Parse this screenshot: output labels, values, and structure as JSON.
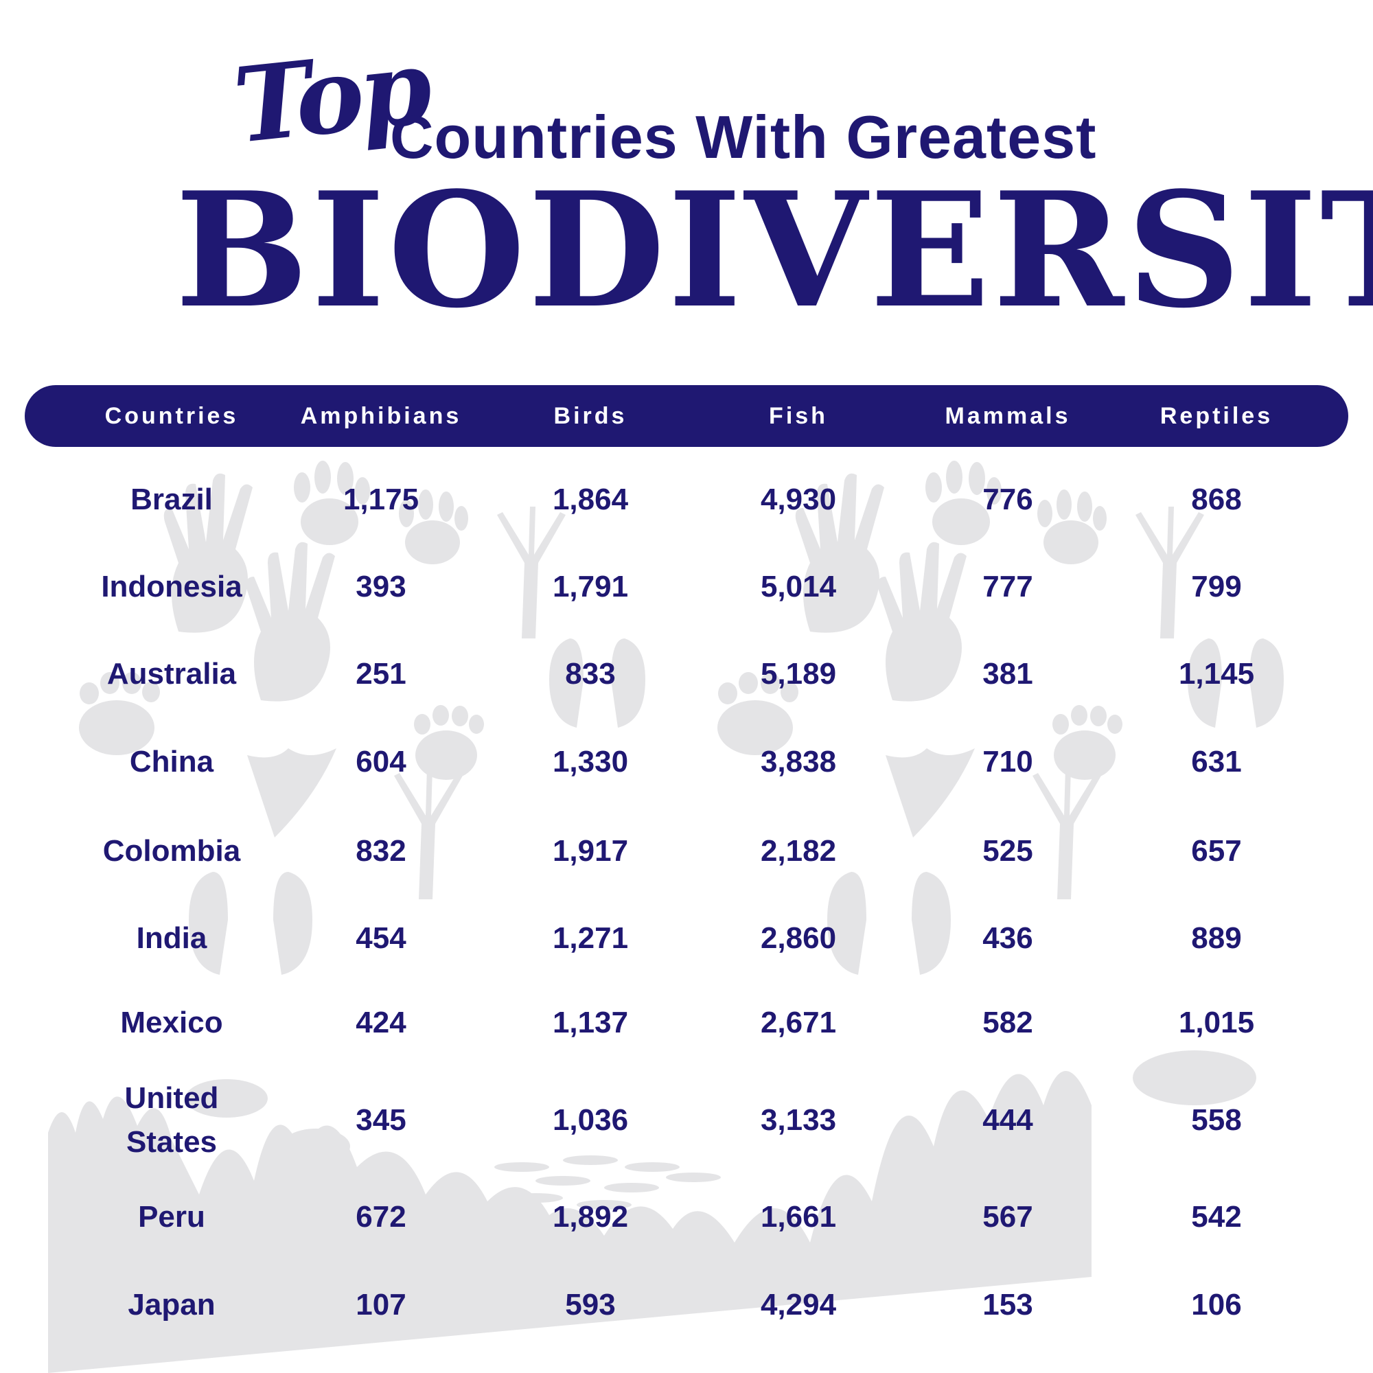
{
  "title": {
    "script_word": "Top",
    "line1": "Countries With Greatest",
    "big_word": "BIODIVERSITY"
  },
  "colors": {
    "primary": "#1f1872",
    "background": "#ffffff",
    "silhouette": "#e4e4e6"
  },
  "chart_data": {
    "type": "table",
    "columns": [
      "Countries",
      "Amphibians",
      "Birds",
      "Fish",
      "Mammals",
      "Reptiles"
    ],
    "rows": [
      [
        "Brazil",
        "1,175",
        "1,864",
        "4,930",
        "776",
        "868"
      ],
      [
        "Indonesia",
        "393",
        "1,791",
        "5,014",
        "777",
        "799"
      ],
      [
        "Australia",
        "251",
        "833",
        "5,189",
        "381",
        "1,145"
      ],
      [
        "China",
        "604",
        "1,330",
        "3,838",
        "710",
        "631"
      ],
      [
        "Colombia",
        "832",
        "1,917",
        "2,182",
        "525",
        "657"
      ],
      [
        "India",
        "454",
        "1,271",
        "2,860",
        "436",
        "889"
      ],
      [
        "Mexico",
        "424",
        "1,137",
        "2,671",
        "582",
        "1,015"
      ],
      [
        "United States",
        "345",
        "1,036",
        "3,133",
        "444",
        "558"
      ],
      [
        "Peru",
        "672",
        "1,892",
        "1,661",
        "567",
        "542"
      ],
      [
        "Japan",
        "107",
        "593",
        "4,294",
        "153",
        "106"
      ]
    ]
  }
}
